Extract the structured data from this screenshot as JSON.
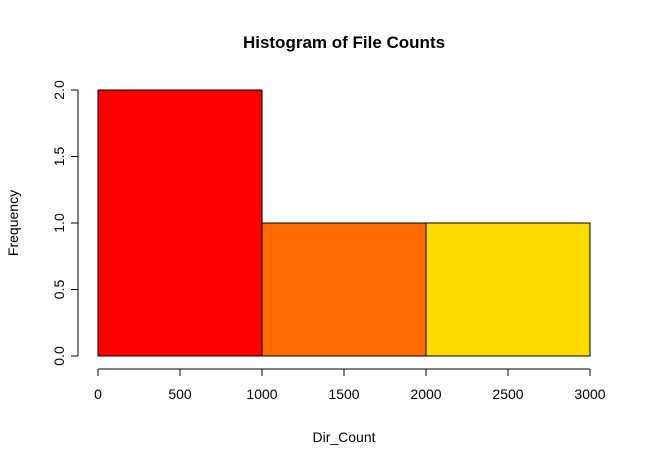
{
  "chart_data": {
    "type": "bar",
    "title": "Histogram of File Counts",
    "xlabel": "Dir_Count",
    "ylabel": "Frequency",
    "bins": [
      {
        "start": 0,
        "end": 1000,
        "count": 2,
        "color": "#FF0000"
      },
      {
        "start": 1000,
        "end": 2000,
        "count": 1,
        "color": "#FF6A00"
      },
      {
        "start": 2000,
        "end": 3000,
        "count": 1,
        "color": "#FFDC00"
      }
    ],
    "xlim": [
      0,
      3000
    ],
    "ylim": [
      0,
      2
    ],
    "x_ticks": [
      "0",
      "500",
      "1000",
      "1500",
      "2000",
      "2500",
      "3000"
    ],
    "y_ticks": [
      "0.0",
      "0.5",
      "1.0",
      "1.5",
      "2.0"
    ],
    "grid": false,
    "legend": "none"
  }
}
